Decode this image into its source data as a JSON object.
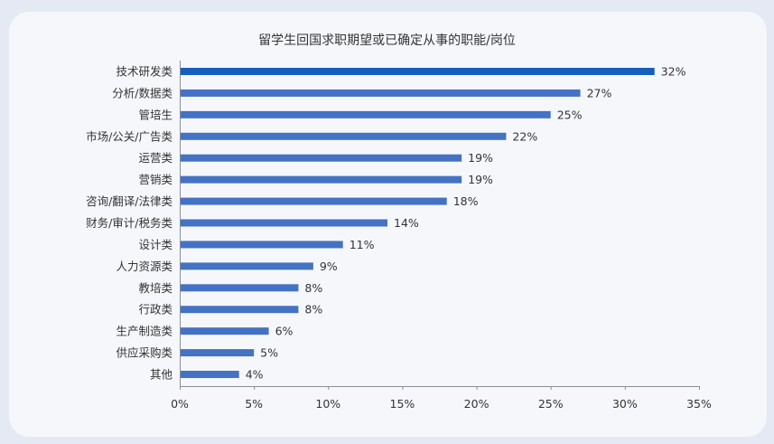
{
  "chart_data": {
    "type": "bar",
    "orientation": "horizontal",
    "title": "留学生回国求职期望或已确定从事的职能/岗位",
    "categories": [
      "技术研发类",
      "分析/数据类",
      "管培生",
      "市场/公关/广告类",
      "运营类",
      "营销类",
      "咨询/翻译/法律类",
      "财务/审计/税务类",
      "设计类",
      "人力资源类",
      "教培类",
      "行政类",
      "生产制造类",
      "供应采购类",
      "其他"
    ],
    "values": [
      32,
      27,
      25,
      22,
      19,
      19,
      18,
      14,
      11,
      9,
      8,
      8,
      6,
      5,
      4
    ],
    "value_labels": [
      "32%",
      "27%",
      "25%",
      "22%",
      "19%",
      "19%",
      "18%",
      "14%",
      "11%",
      "9%",
      "8%",
      "8%",
      "6%",
      "5%",
      "4%"
    ],
    "x_ticks": [
      "0%",
      "5%",
      "10%",
      "15%",
      "20%",
      "25%",
      "30%",
      "35%"
    ],
    "xlim": [
      0,
      35
    ],
    "highlight_index": 0,
    "colors": {
      "highlight": "#1560bd",
      "bar": "#4472c4",
      "axis": "#8a8f99"
    }
  }
}
